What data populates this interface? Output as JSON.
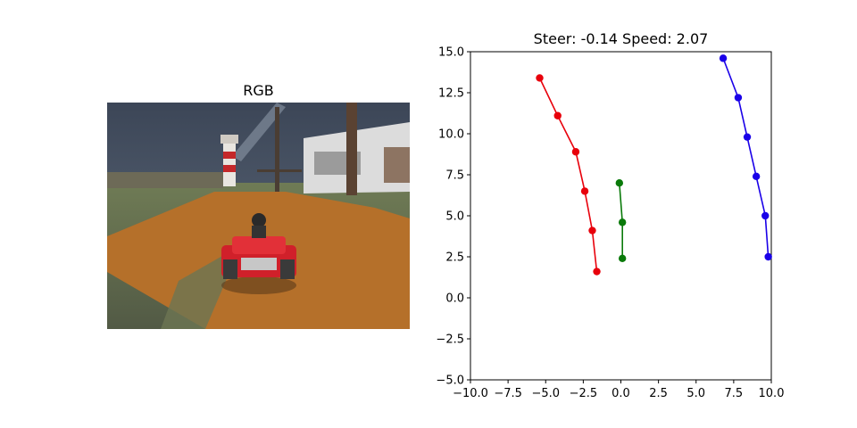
{
  "left_panel": {
    "title": "RGB",
    "image_description_icon": "race-kart-rear-view-image"
  },
  "chart_data": {
    "type": "line",
    "title": "Steer: -0.14 Speed: 2.07",
    "xlabel": "",
    "ylabel": "",
    "xlim": [
      -10.0,
      10.0
    ],
    "ylim": [
      -5.0,
      15.0
    ],
    "x_ticks": [
      "−10.0",
      "−7.5",
      "−5.0",
      "−2.5",
      "0.0",
      "2.5",
      "5.0",
      "7.5",
      "10.0"
    ],
    "x_tick_values": [
      -10,
      -7.5,
      -5,
      -2.5,
      0,
      2.5,
      5,
      7.5,
      10
    ],
    "y_ticks": [
      "15.0",
      "12.5",
      "10.0",
      "7.5",
      "5.0",
      "2.5",
      "0.0",
      "−2.5",
      "−5.0"
    ],
    "y_tick_values": [
      15,
      12.5,
      10,
      7.5,
      5,
      2.5,
      0,
      -2.5,
      -5
    ],
    "grid": false,
    "series": [
      {
        "color": "#e8000b",
        "points": [
          [
            -1.6,
            1.6
          ],
          [
            -1.9,
            4.1
          ],
          [
            -2.4,
            6.5
          ],
          [
            -3.0,
            8.9
          ],
          [
            -4.2,
            11.1
          ],
          [
            -5.4,
            13.4
          ]
        ]
      },
      {
        "color": "#0a7a0a",
        "points": [
          [
            0.1,
            2.4
          ],
          [
            0.1,
            4.6
          ],
          [
            -0.1,
            7.0
          ]
        ]
      },
      {
        "color": "#1a00e8",
        "points": [
          [
            9.8,
            2.5
          ],
          [
            9.6,
            5.0
          ],
          [
            9.0,
            7.4
          ],
          [
            8.4,
            9.8
          ],
          [
            7.8,
            12.2
          ],
          [
            6.8,
            14.6
          ]
        ]
      }
    ]
  }
}
